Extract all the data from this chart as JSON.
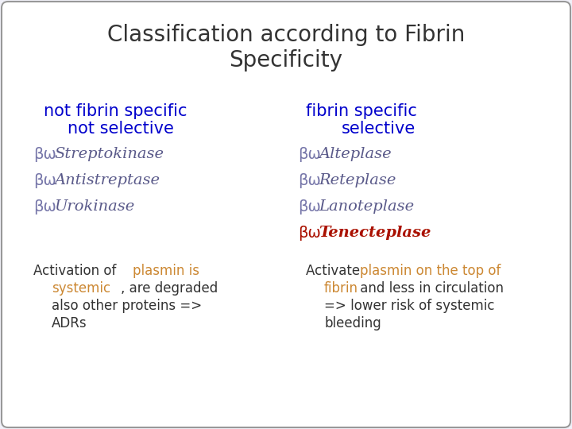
{
  "title": "Classification according to Fibrin\nSpecificity",
  "title_color": "#333333",
  "title_fontsize": 20,
  "background_color": "#f0f0f8",
  "border_color": "#999999",
  "left_header_line1": "not fibrin specific",
  "left_header_line2": "not selective",
  "right_header_line1": "fibrin specific",
  "right_header_line2": "selective",
  "header_color": "#0000cc",
  "header_fontsize": 15,
  "left_items": [
    "Streptokinase",
    "Antistreptase",
    "Urokinase"
  ],
  "right_items": [
    "Alteplase",
    "Reteplase",
    "Lanoteplase",
    "Tenecteplase"
  ],
  "item_color": "#5a5a8a",
  "item_fontsize": 14,
  "tenecteplase_color": "#aa1100",
  "note_fontsize": 12,
  "note_color_black": "#333333",
  "note_color_orange": "#cc8833"
}
